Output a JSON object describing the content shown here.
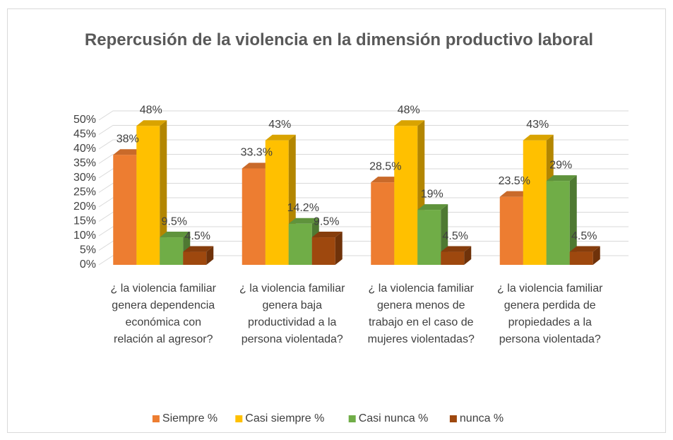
{
  "chart_data": {
    "type": "bar3d",
    "title": "Repercusión de la violencia en la dimensión productivo laboral",
    "categories": [
      "¿ la violencia familiar genera dependencia económica con relación al agresor?",
      "¿ la violencia familiar genera baja productividad a la persona violentada?",
      "¿ la violencia familiar genera menos de trabajo en el caso de mujeres violentadas?",
      "¿ la violencia familiar genera perdida de propiedades a la persona violentada?"
    ],
    "series": [
      {
        "name": "Siempre %",
        "color": "#ED7D31",
        "values": [
          38,
          33.3,
          28.5,
          23.5
        ],
        "value_labels": [
          "38%",
          "33.3%",
          "28.5%",
          "23.5%"
        ]
      },
      {
        "name": "Casi siempre %",
        "color": "#FFC000",
        "values": [
          48,
          43,
          48,
          43
        ],
        "value_labels": [
          "48%",
          "43%",
          "48%",
          "43%"
        ]
      },
      {
        "name": "Casi nunca %",
        "color": "#70AD47",
        "values": [
          9.5,
          14.2,
          19,
          29
        ],
        "value_labels": [
          "9.5%",
          "14.2%",
          "19%",
          "29%"
        ]
      },
      {
        "name": "nunca %",
        "color": "#9E480E",
        "values": [
          4.5,
          9.5,
          4.5,
          4.5
        ],
        "value_labels": [
          "4.5%",
          "9.5%",
          "4.5%",
          "4.5%"
        ]
      }
    ],
    "ylim": [
      0,
      50
    ],
    "yticks": [
      {
        "value": 0,
        "label": "0%"
      },
      {
        "value": 5,
        "label": "5%"
      },
      {
        "value": 10,
        "label": "10%"
      },
      {
        "value": 15,
        "label": "15%"
      },
      {
        "value": 20,
        "label": "20%"
      },
      {
        "value": 25,
        "label": "25%"
      },
      {
        "value": 30,
        "label": "30%"
      },
      {
        "value": 35,
        "label": "35%"
      },
      {
        "value": 40,
        "label": "40%"
      },
      {
        "value": 45,
        "label": "45%"
      },
      {
        "value": 50,
        "label": "50%"
      }
    ],
    "grid": true,
    "legend": "bottom"
  }
}
